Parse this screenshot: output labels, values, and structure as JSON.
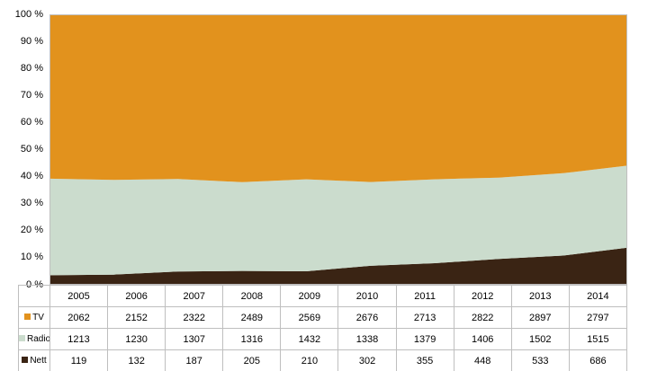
{
  "chart_data": {
    "type": "area",
    "stacked": true,
    "percent_stacked": true,
    "title": "",
    "xlabel": "",
    "ylabel": "",
    "categories": [
      "2005",
      "2006",
      "2007",
      "2008",
      "2009",
      "2010",
      "2011",
      "2012",
      "2013",
      "2014"
    ],
    "series": [
      {
        "name": "TV",
        "color": "#e2921d",
        "values": [
          2062,
          2152,
          2322,
          2489,
          2569,
          2676,
          2713,
          2822,
          2897,
          2797
        ]
      },
      {
        "name": "Radio",
        "color": "#cbdccd",
        "values": [
          1213,
          1230,
          1307,
          1316,
          1432,
          1338,
          1379,
          1406,
          1502,
          1515
        ]
      },
      {
        "name": "Nett",
        "color": "#3a2414",
        "values": [
          119,
          132,
          187,
          205,
          210,
          302,
          355,
          448,
          533,
          686
        ]
      }
    ],
    "y_axis": {
      "min": 0,
      "max": 100,
      "step": 10,
      "tick_labels": [
        "0 %",
        "10 %",
        "20 %",
        "30 %",
        "40 %",
        "50 %",
        "60 %",
        "70 %",
        "80 %",
        "90 %",
        "100 %"
      ]
    },
    "legend_position": "table-left",
    "grid": false,
    "plot_border_color": "#bfbfbf",
    "table_border_color": "#bfbfbf"
  }
}
